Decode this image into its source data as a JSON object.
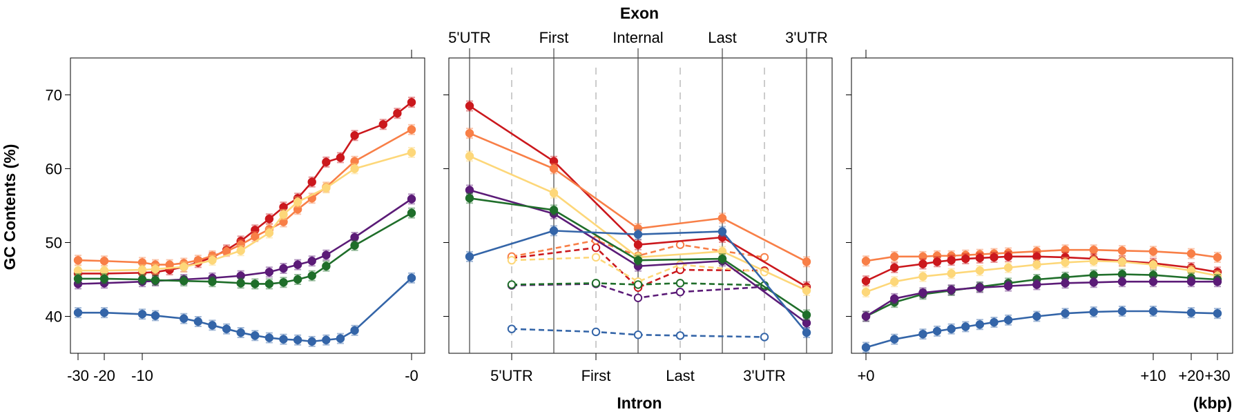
{
  "figure": {
    "y_axis_label": "GC Contents (%)",
    "top_title": "Exon",
    "bottom_title": "Intron",
    "right_unit": "(kbp)"
  },
  "colors": {
    "red": "#cb181d",
    "orange": "#f87f47",
    "yellow": "#fdd779",
    "purple": "#5b1b77",
    "green": "#1f6e2a",
    "blue": "#3465a8"
  },
  "chart_data": [
    {
      "type": "line",
      "panel": "upstream",
      "x_ticks": [
        -30,
        -20,
        -10,
        0
      ],
      "x_tick_labels": [
        "-30",
        "-20",
        "-10",
        "-0"
      ],
      "ylim": [
        35,
        75
      ],
      "y_ticks": [
        40,
        50,
        60,
        70
      ],
      "x_scale": "compressed: linear from -30 to -9 kbp, then expanded near 0",
      "series": [
        {
          "color_key": "red",
          "x": [
            -30,
            -20,
            -10,
            -9,
            -8.5,
            -8,
            -7.5,
            -7,
            -6.5,
            -6,
            -5.5,
            -5,
            -4.5,
            -4,
            -3.5,
            -3,
            -2.5,
            -2,
            -1,
            -0.5,
            0
          ],
          "values": [
            45.8,
            45.8,
            45.9,
            46.0,
            46.3,
            46.7,
            47.3,
            48.0,
            49.0,
            50.2,
            51.7,
            53.2,
            54.8,
            56.0,
            58.2,
            60.9,
            61.5,
            64.5,
            66.0,
            67.5,
            69.0
          ]
        },
        {
          "color_key": "orange",
          "x": [
            -30,
            -20,
            -10,
            -9,
            -8.5,
            -8,
            -7.5,
            -7,
            -6.5,
            -6,
            -5.5,
            -5,
            -4.5,
            -4,
            -3.5,
            -3,
            -2,
            0
          ],
          "values": [
            47.6,
            47.5,
            47.3,
            47.0,
            47.0,
            47.2,
            47.6,
            48.2,
            48.8,
            49.7,
            50.8,
            51.8,
            52.8,
            54.5,
            56.0,
            57.5,
            61.0,
            65.3
          ]
        },
        {
          "color_key": "yellow",
          "x": [
            -30,
            -20,
            -10,
            -9,
            -8,
            -7,
            -6,
            -5,
            -4.5,
            -4,
            -3,
            -2,
            0
          ],
          "values": [
            46.2,
            46.2,
            46.3,
            46.4,
            46.7,
            47.6,
            48.9,
            51.3,
            53.8,
            55.5,
            57.4,
            60.0,
            62.2
          ]
        },
        {
          "color_key": "purple",
          "x": [
            -30,
            -20,
            -10,
            -9,
            -8,
            -7,
            -6,
            -5,
            -4.5,
            -4,
            -3.5,
            -3,
            -2,
            0
          ],
          "values": [
            44.4,
            44.5,
            44.7,
            44.8,
            45.0,
            45.2,
            45.5,
            46.0,
            46.5,
            47.0,
            47.5,
            48.3,
            50.7,
            55.9
          ]
        },
        {
          "color_key": "green",
          "x": [
            -30,
            -20,
            -10,
            -9,
            -8,
            -7,
            -6,
            -5.5,
            -5,
            -4.5,
            -4,
            -3.5,
            -3,
            -2,
            0
          ],
          "values": [
            45.1,
            45.1,
            45.0,
            44.9,
            44.8,
            44.7,
            44.5,
            44.4,
            44.4,
            44.6,
            45.0,
            45.5,
            46.8,
            49.6,
            54.0
          ]
        },
        {
          "color_key": "blue",
          "x": [
            -30,
            -20,
            -10,
            -9,
            -8,
            -7.5,
            -7,
            -6.5,
            -6,
            -5.5,
            -5,
            -4.5,
            -4,
            -3.5,
            -3,
            -2.5,
            -2,
            0
          ],
          "values": [
            40.5,
            40.5,
            40.3,
            40.1,
            39.7,
            39.3,
            38.8,
            38.3,
            37.8,
            37.4,
            37.1,
            36.9,
            36.8,
            36.6,
            36.8,
            37.0,
            38.1,
            45.2
          ]
        }
      ]
    },
    {
      "type": "line",
      "panel": "gene_body",
      "top_categories": [
        "5'UTR",
        "First",
        "Internal",
        "Last",
        "3'UTR"
      ],
      "bottom_categories": [
        "5'UTR",
        "First",
        "Last",
        "3'UTR"
      ],
      "ylim": [
        35,
        75
      ],
      "exon_series": [
        {
          "color_key": "red",
          "values": [
            68.5,
            61.0,
            49.7,
            50.7,
            44.0
          ]
        },
        {
          "color_key": "orange",
          "values": [
            64.8,
            60.0,
            51.9,
            53.3,
            47.4
          ]
        },
        {
          "color_key": "yellow",
          "values": [
            61.7,
            56.7,
            48.0,
            48.8,
            43.5
          ]
        },
        {
          "color_key": "purple",
          "values": [
            57.1,
            53.9,
            46.8,
            47.5,
            39.1
          ]
        },
        {
          "color_key": "green",
          "values": [
            56.0,
            54.4,
            47.6,
            47.8,
            40.2
          ]
        },
        {
          "color_key": "blue",
          "values": [
            48.1,
            51.6,
            51.1,
            51.5,
            37.8
          ]
        }
      ],
      "intron_x": [
        1,
        2,
        2.5,
        3,
        4
      ],
      "intron_series": [
        {
          "color_key": "red",
          "values": [
            47.9,
            49.3,
            43.9,
            46.3,
            46.2
          ]
        },
        {
          "color_key": "orange",
          "values": [
            48.1,
            50.3,
            48.2,
            49.7,
            48.0
          ]
        },
        {
          "color_key": "yellow",
          "values": [
            47.6,
            48.0,
            44.7,
            47.0,
            46.0
          ]
        },
        {
          "color_key": "purple",
          "values": [
            44.2,
            44.4,
            42.5,
            43.3,
            44.0
          ]
        },
        {
          "color_key": "green",
          "values": [
            44.3,
            44.5,
            44.3,
            44.5,
            44.2
          ]
        },
        {
          "color_key": "blue",
          "values": [
            38.3,
            37.9,
            37.5,
            37.4,
            37.2
          ]
        }
      ]
    },
    {
      "type": "line",
      "panel": "downstream",
      "x_ticks": [
        0,
        10,
        20,
        30
      ],
      "x_tick_labels": [
        "+0",
        "+10",
        "+20",
        "+30"
      ],
      "ylim": [
        35,
        75
      ],
      "x_scale": "expanded near 0, compressed from +9 to +30 kbp",
      "series": [
        {
          "color_key": "orange",
          "x": [
            0,
            1,
            2,
            2.5,
            3,
            3.5,
            4,
            4.5,
            5,
            6,
            7,
            8,
            9,
            10,
            20,
            30
          ],
          "values": [
            47.5,
            48.1,
            48.1,
            48.2,
            48.2,
            48.3,
            48.4,
            48.5,
            48.6,
            48.8,
            49.0,
            49.0,
            48.9,
            48.8,
            48.5,
            48.0
          ]
        },
        {
          "color_key": "red",
          "x": [
            0,
            1,
            2,
            2.5,
            3,
            3.5,
            4,
            4.5,
            5,
            6,
            7,
            8,
            9,
            10,
            20,
            30
          ],
          "values": [
            44.8,
            46.6,
            47.1,
            47.4,
            47.6,
            47.8,
            47.9,
            48.0,
            48.1,
            48.1,
            48.0,
            47.8,
            47.5,
            47.2,
            46.6,
            46.0
          ]
        },
        {
          "color_key": "yellow",
          "x": [
            0,
            1,
            2,
            3,
            4,
            5,
            6,
            7,
            8,
            9,
            10,
            20,
            30
          ],
          "values": [
            43.3,
            44.7,
            45.4,
            45.8,
            46.2,
            46.6,
            47.0,
            47.3,
            47.5,
            47.4,
            47.0,
            46.2,
            45.5
          ]
        },
        {
          "color_key": "green",
          "x": [
            0,
            1,
            2,
            3,
            4,
            5,
            6,
            7,
            8,
            9,
            10,
            20,
            30
          ],
          "values": [
            40.0,
            41.9,
            43.0,
            43.5,
            44.0,
            44.5,
            45.0,
            45.3,
            45.6,
            45.7,
            45.6,
            45.2,
            45.0
          ]
        },
        {
          "color_key": "purple",
          "x": [
            0,
            1,
            2,
            3,
            4,
            5,
            6,
            7,
            8,
            9,
            10,
            20,
            30
          ],
          "values": [
            40.0,
            42.4,
            43.2,
            43.6,
            43.9,
            44.1,
            44.3,
            44.5,
            44.6,
            44.7,
            44.7,
            44.7,
            44.7
          ]
        },
        {
          "color_key": "blue",
          "x": [
            0,
            1,
            2,
            2.5,
            3,
            3.5,
            4,
            4.5,
            5,
            6,
            7,
            8,
            9,
            10,
            20,
            30
          ],
          "values": [
            35.8,
            36.9,
            37.6,
            38.0,
            38.3,
            38.6,
            38.9,
            39.2,
            39.5,
            40.0,
            40.4,
            40.6,
            40.7,
            40.7,
            40.5,
            40.4
          ]
        }
      ]
    }
  ]
}
